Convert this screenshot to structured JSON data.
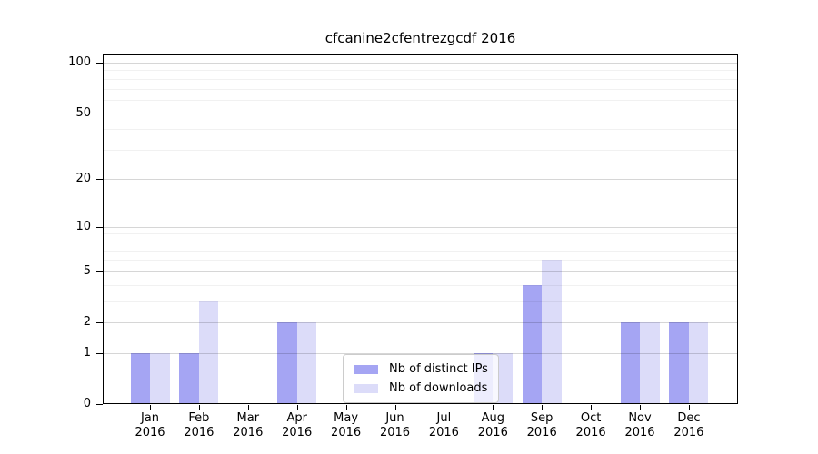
{
  "chart_data": {
    "type": "bar",
    "title": "cfcanine2cfentrezgcdf 2016",
    "categories": [
      "Jan 2016",
      "Feb 2016",
      "Mar 2016",
      "Apr 2016",
      "May 2016",
      "Jun 2016",
      "Jul 2016",
      "Aug 2016",
      "Sep 2016",
      "Oct 2016",
      "Nov 2016",
      "Dec 2016"
    ],
    "x_tick_line1": [
      "Jan",
      "Feb",
      "Mar",
      "Apr",
      "May",
      "Jun",
      "Jul",
      "Aug",
      "Sep",
      "Oct",
      "Nov",
      "Dec"
    ],
    "x_tick_line2": "2016",
    "series": [
      {
        "name": "Nb of distinct IPs",
        "color": "#a5a5f3",
        "values": [
          1,
          1,
          0,
          2,
          0,
          0,
          0,
          1,
          4,
          0,
          2,
          2
        ]
      },
      {
        "name": "Nb of downloads",
        "color": "#dcdcf9",
        "values": [
          1,
          3,
          0,
          2,
          0,
          0,
          0,
          1,
          6,
          0,
          2,
          2
        ]
      }
    ],
    "y_axis": {
      "scale": "log1p",
      "major_ticks": [
        0,
        1,
        2,
        5,
        10,
        20,
        50,
        100
      ],
      "minor_ticks": [
        3,
        4,
        6,
        7,
        8,
        9,
        30,
        40,
        60,
        70,
        80,
        90
      ],
      "range": [
        0,
        112
      ]
    },
    "grid": {
      "horizontal": true,
      "drawn_over_bars": true
    },
    "legend": {
      "location": "inside-bottom-center"
    }
  }
}
